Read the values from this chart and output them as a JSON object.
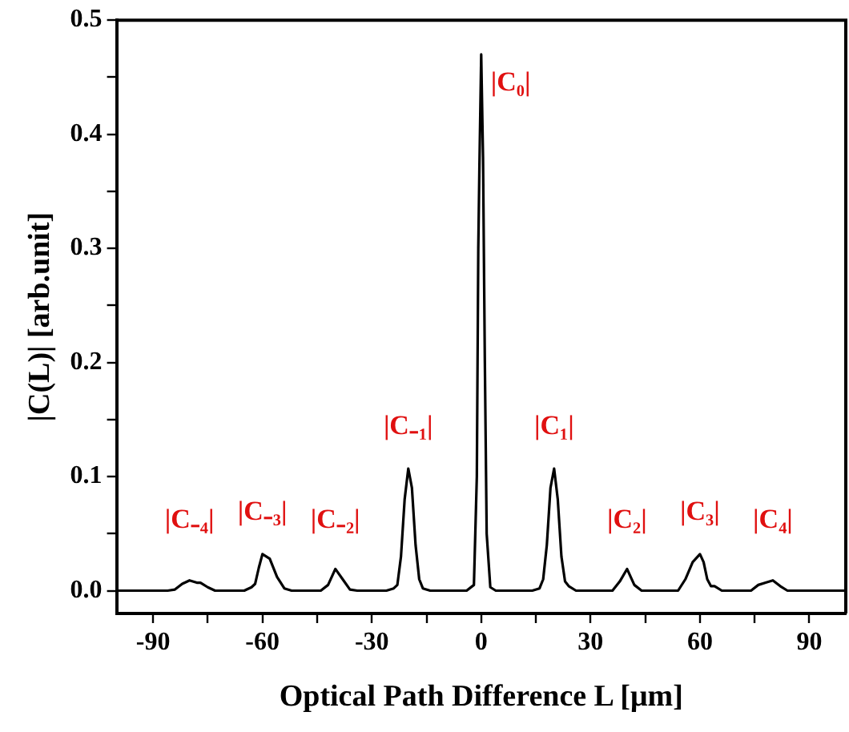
{
  "chart_data": {
    "type": "line",
    "xlabel": "Optical Path Difference L [μm]",
    "ylabel": "|C(L)| [arb.unit]",
    "xlim": [
      -100,
      100
    ],
    "ylim": [
      -0.02,
      0.5
    ],
    "xticks": [
      -90,
      {
        "value": -75,
        "label": null
      },
      -60,
      {
        "value": -45,
        "label": null
      },
      -30,
      {
        "value": -15,
        "label": null
      },
      0,
      {
        "value": 15,
        "label": null
      },
      30,
      {
        "value": 45,
        "label": null
      },
      60,
      {
        "value": 75,
        "label": null
      },
      90
    ],
    "yticks": [
      {
        "value": 0,
        "label": "0.0"
      },
      {
        "value": 0.05,
        "label": null
      },
      0.1,
      {
        "value": 0.15,
        "label": null
      },
      0.2,
      {
        "value": 0.25,
        "label": null
      },
      0.3,
      {
        "value": 0.35,
        "label": null
      },
      0.4,
      {
        "value": 0.45,
        "label": null
      },
      0.5
    ],
    "grid": false,
    "legend": false,
    "marker": "none",
    "line_style": "solid",
    "series": [
      {
        "color": "#000000",
        "x": [
          -100,
          -86,
          -84,
          -82,
          -80,
          -78,
          -77,
          -75,
          -73,
          -65,
          -63,
          -62,
          -61,
          -60,
          -58,
          -56,
          -54,
          -52,
          -44,
          -42,
          -40,
          -38,
          -36,
          -34,
          -26,
          -24,
          -23,
          -22,
          -21,
          -20,
          -19,
          -18,
          -17,
          -16,
          -14,
          -4,
          -2,
          -1.2,
          -0.8,
          -0.5,
          0,
          0.5,
          1,
          1.5,
          2.5,
          4,
          14,
          16,
          17,
          18,
          19,
          20,
          21,
          22,
          23,
          24,
          26,
          36,
          38,
          40,
          42,
          44,
          54,
          56,
          58,
          60,
          61,
          62,
          63,
          64,
          66,
          74,
          76,
          78,
          80,
          82,
          84,
          100
        ],
        "values": [
          0,
          0,
          0.001,
          0.006,
          0.009,
          0.007,
          0.007,
          0.003,
          0,
          0,
          0.003,
          0.006,
          0.02,
          0.032,
          0.028,
          0.012,
          0.002,
          0,
          0,
          0.005,
          0.019,
          0.01,
          0.001,
          0,
          0,
          0.002,
          0.005,
          0.03,
          0.08,
          0.107,
          0.09,
          0.04,
          0.01,
          0.002,
          0,
          0,
          0.005,
          0.1,
          0.3,
          0.37,
          0.47,
          0.38,
          0.2,
          0.05,
          0.003,
          0,
          0,
          0.002,
          0.01,
          0.04,
          0.09,
          0.107,
          0.08,
          0.03,
          0.008,
          0.004,
          0,
          0,
          0.008,
          0.019,
          0.005,
          0,
          0,
          0.01,
          0.025,
          0.032,
          0.025,
          0.01,
          0.004,
          0.004,
          0,
          0,
          0.005,
          0.007,
          0.009,
          0.004,
          0,
          0
        ]
      }
    ],
    "annotations": [
      {
        "text": "|C₀|",
        "x": 0,
        "y": 0.47
      },
      {
        "text": "|C₋₁|",
        "x": -20,
        "y": 0.107
      },
      {
        "text": "|C₁|",
        "x": 20,
        "y": 0.107
      },
      {
        "text": "|C₋₂|",
        "x": -40,
        "y": 0.019
      },
      {
        "text": "|C₂|",
        "x": 40,
        "y": 0.019
      },
      {
        "text": "|C₋₃|",
        "x": -60,
        "y": 0.032
      },
      {
        "text": "|C₃|",
        "x": 60,
        "y": 0.032
      },
      {
        "text": "|C₋₄|",
        "x": -80,
        "y": 0.009
      },
      {
        "text": "|C₄|",
        "x": 80,
        "y": 0.009
      }
    ]
  }
}
